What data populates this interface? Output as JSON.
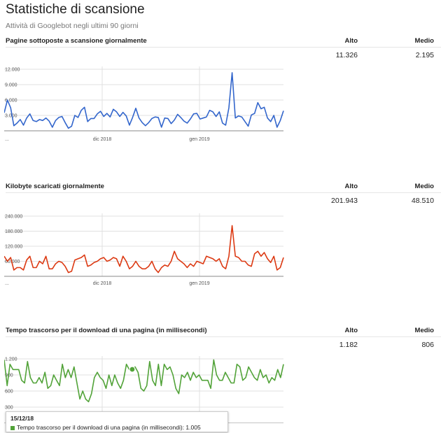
{
  "page": {
    "title": "Statistiche di scansione",
    "subtitle": "Attività di Googlebot negli ultimi 90 giorni"
  },
  "headers": {
    "alto": "Alto",
    "medio": "Medio"
  },
  "colors": {
    "pages": "#3366cc",
    "kilobytes": "#dc3912",
    "time": "#52a339"
  },
  "charts": [
    {
      "title": "Pagine sottoposte a scansione giornalmente",
      "alto": "11.326",
      "medio": "2.195",
      "chart_data": {
        "type": "line",
        "ylim": [
          0,
          12000
        ],
        "yticks": [
          "12.000",
          "9.000",
          "6.000",
          "3.000"
        ],
        "xlabels": [
          "...",
          "dic 2018",
          "gen 2019"
        ],
        "series": [
          {
            "values": [
              3500,
              6000,
              4500,
              1000,
              1500,
              2200,
              1100,
              2500,
              3300,
              2000,
              1800,
              2200,
              2000,
              2500,
              1900,
              700,
              2000,
              2600,
              2800,
              1600,
              500,
              900,
              3000,
              2600,
              4000,
              4600,
              1800,
              2400,
              2400,
              3300,
              3800,
              2800,
              3400,
              2700,
              4200,
              3700,
              2800,
              3600,
              2900,
              1100,
              2600,
              4400,
              2500,
              1600,
              1000,
              1600,
              2400,
              2700,
              2600,
              700,
              2500,
              2400,
              1400,
              2100,
              3200,
              2600,
              1900,
              1500,
              2300,
              3300,
              3400,
              2300,
              2500,
              2700,
              4000,
              3700,
              2800,
              3700,
              1500,
              1100,
              4500,
              11326,
              2500,
              2900,
              2700,
              1800,
              900,
              3100,
              3400,
              5500,
              4300,
              4600,
              2500,
              1800,
              3000,
              700,
              2000,
              3900
            ]
          }
        ]
      }
    },
    {
      "title": "Kilobyte scaricati giornalmente",
      "alto": "201.943",
      "medio": "48.510",
      "chart_data": {
        "type": "line",
        "ylim": [
          0,
          240000
        ],
        "yticks": [
          "240.000",
          "180.000",
          "120.000",
          "60.000"
        ],
        "xlabels": [
          "...",
          "dic 2018",
          "gen 2019"
        ],
        "series": [
          {
            "values": [
              80000,
              60000,
              75000,
              25000,
              35000,
              35000,
              25000,
              65000,
              80000,
              35000,
              35000,
              60000,
              50000,
              80000,
              30000,
              30000,
              50000,
              60000,
              55000,
              40000,
              15000,
              20000,
              65000,
              70000,
              75000,
              85000,
              40000,
              45000,
              55000,
              60000,
              70000,
              75000,
              60000,
              65000,
              75000,
              70000,
              40000,
              80000,
              60000,
              30000,
              40000,
              60000,
              40000,
              30000,
              30000,
              40000,
              60000,
              30000,
              15000,
              35000,
              45000,
              40000,
              60000,
              100000,
              70000,
              60000,
              50000,
              35000,
              50000,
              40000,
              60000,
              55000,
              50000,
              80000,
              75000,
              70000,
              60000,
              70000,
              40000,
              30000,
              80000,
              201943,
              80000,
              75000,
              60000,
              60000,
              45000,
              40000,
              90000,
              100000,
              80000,
              95000,
              70000,
              55000,
              80000,
              25000,
              35000,
              75000
            ]
          }
        ]
      }
    },
    {
      "title": "Tempo trascorso per il download di una pagina (in millisecondi)",
      "alto": "1.182",
      "medio": "806",
      "chart_data": {
        "type": "line",
        "ylim": [
          0,
          1200
        ],
        "yticks": [
          "1.200",
          "900",
          "600",
          "300"
        ],
        "xlabels": [],
        "series": [
          {
            "values": [
              1182,
              700,
              1100,
              1000,
              1000,
              1000,
              800,
              750,
              1150,
              850,
              750,
              750,
              850,
              750,
              950,
              650,
              700,
              900,
              800,
              700,
              1100,
              850,
              1000,
              850,
              1050,
              750,
              450,
              600,
              450,
              400,
              550,
              850,
              950,
              850,
              800,
              650,
              900,
              700,
              900,
              750,
              650,
              800,
              1100,
              1000,
              1005,
              1050,
              950,
              650,
              600,
              700,
              1150,
              800,
              700,
              1100,
              700,
              1100,
              1000,
              1050,
              900,
              650,
              550,
              900,
              850,
              950,
              800,
              950,
              850,
              900,
              800,
              800,
              800,
              650,
              1182,
              900,
              800,
              800,
              950,
              850,
              750,
              750,
              1100,
              1050,
              800,
              850,
              1050,
              950,
              850,
              800,
              1000,
              850,
              900,
              750,
              850,
              800,
              1000,
              850,
              1100
            ]
          }
        ]
      }
    }
  ],
  "tooltip": {
    "date": "15/12/18",
    "label": "Tempo trascorso per il download di una pagina (in millisecondi): 1.005"
  }
}
